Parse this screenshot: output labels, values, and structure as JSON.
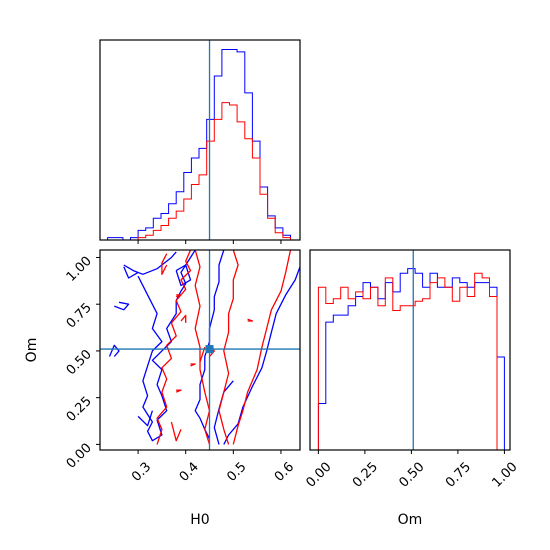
{
  "chart_data": {
    "type": "corner",
    "parameters": [
      "H0",
      "Om"
    ],
    "truths": {
      "H0": 0.45,
      "Om": 0.51
    },
    "colors": {
      "blue": "#0000ff",
      "red": "#ff0000",
      "truth": "#1f77b4"
    },
    "h0_hist": {
      "xlim": [
        0.22,
        0.64
      ],
      "bin_edges": [
        0.22,
        0.236,
        0.252,
        0.268,
        0.284,
        0.3,
        0.316,
        0.332,
        0.348,
        0.364,
        0.38,
        0.396,
        0.412,
        0.428,
        0.444,
        0.46,
        0.476,
        0.492,
        0.508,
        0.524,
        0.54,
        0.556,
        0.572,
        0.588,
        0.604,
        0.62
      ],
      "series": [
        {
          "color": "blue",
          "values": [
            0,
            1,
            1,
            0,
            1,
            4,
            5,
            9,
            11,
            15,
            20,
            28,
            34,
            38,
            50,
            68,
            79,
            79,
            78,
            61,
            41,
            22,
            10,
            5,
            2
          ]
        },
        {
          "color": "red",
          "values": [
            0,
            0,
            0,
            0,
            0,
            1,
            2,
            4,
            6,
            9,
            12,
            17,
            23,
            27,
            41,
            50,
            57,
            56,
            49,
            42,
            34,
            19,
            9,
            3,
            1
          ]
        }
      ]
    },
    "om_hist": {
      "xlim": [
        -0.045,
        1.03
      ],
      "xticks": [
        "0.00",
        "0.25",
        "0.50",
        "0.75",
        "1.00"
      ],
      "bin_edges": [
        0.0,
        0.04,
        0.08,
        0.12,
        0.16,
        0.2,
        0.24,
        0.28,
        0.32,
        0.36,
        0.4,
        0.44,
        0.48,
        0.52,
        0.56,
        0.6,
        0.64,
        0.68,
        0.72,
        0.76,
        0.8,
        0.84,
        0.88,
        0.92,
        0.96,
        1.0
      ],
      "series": [
        {
          "color": "blue",
          "values": [
            20,
            55,
            58,
            58,
            62,
            66,
            72,
            70,
            65,
            72,
            68,
            76,
            78,
            76,
            70,
            76,
            70,
            70,
            74,
            72,
            70,
            72,
            72,
            70,
            40
          ]
        },
        {
          "color": "red",
          "values": [
            70,
            63,
            65,
            70,
            65,
            68,
            65,
            70,
            62,
            74,
            60,
            62,
            62,
            64,
            65,
            72,
            74,
            70,
            64,
            70,
            66,
            76,
            74,
            66,
            0
          ]
        }
      ]
    },
    "contours": {
      "xlim": [
        0.22,
        0.64
      ],
      "ylim": [
        -0.03,
        1.04
      ],
      "xticks": [
        "0.3",
        "0.4",
        "0.5",
        "0.6"
      ],
      "yticks": [
        "0.00",
        "0.25",
        "0.50",
        "0.75",
        "1.00"
      ],
      "series": [
        {
          "color": "blue",
          "paths": [
            [
              [
                0.24,
                0.47
              ],
              [
                0.25,
                0.53
              ],
              [
                0.26,
                0.5
              ],
              [
                0.25,
                0.47
              ]
            ],
            [
              [
                0.26,
                0.76
              ],
              [
                0.28,
                0.75
              ],
              [
                0.27,
                0.72
              ],
              [
                0.25,
                0.74
              ]
            ],
            [
              [
                0.27,
                0.96
              ],
              [
                0.29,
                0.93
              ],
              [
                0.31,
                0.91
              ],
              [
                0.34,
                0.94
              ],
              [
                0.37,
                1.0
              ],
              [
                0.38,
                1.03
              ]
            ],
            [
              [
                0.38,
                0.93
              ],
              [
                0.4,
                0.96
              ],
              [
                0.41,
                0.88
              ],
              [
                0.39,
                0.85
              ],
              [
                0.38,
                0.93
              ]
            ],
            [
              [
                0.3,
                0.92
              ],
              [
                0.28,
                0.89
              ],
              [
                0.27,
                0.95
              ]
            ],
            [
              [
                0.3,
                0.9
              ],
              [
                0.32,
                0.8
              ],
              [
                0.34,
                0.7
              ],
              [
                0.33,
                0.62
              ],
              [
                0.35,
                0.55
              ],
              [
                0.33,
                0.5
              ],
              [
                0.32,
                0.42
              ],
              [
                0.31,
                0.34
              ],
              [
                0.32,
                0.26
              ],
              [
                0.31,
                0.2
              ],
              [
                0.33,
                0.12
              ],
              [
                0.32,
                0.07
              ],
              [
                0.33,
                0.02
              ],
              [
                0.35,
                0.05
              ],
              [
                0.34,
                0.13
              ],
              [
                0.36,
                0.18
              ],
              [
                0.35,
                0.26
              ],
              [
                0.34,
                0.32
              ],
              [
                0.35,
                0.4
              ],
              [
                0.33,
                0.45
              ],
              [
                0.35,
                0.5
              ],
              [
                0.37,
                0.55
              ],
              [
                0.36,
                0.62
              ],
              [
                0.38,
                0.7
              ],
              [
                0.38,
                0.77
              ],
              [
                0.39,
                0.82
              ],
              [
                0.4,
                0.86
              ],
              [
                0.39,
                0.92
              ],
              [
                0.41,
                1.0
              ],
              [
                0.42,
                1.04
              ]
            ],
            [
              [
                0.3,
                0.15
              ],
              [
                0.32,
                0.1
              ],
              [
                0.33,
                0.18
              ]
            ],
            [
              [
                0.48,
                1.04
              ],
              [
                0.47,
                0.96
              ],
              [
                0.47,
                0.87
              ],
              [
                0.46,
                0.79
              ],
              [
                0.46,
                0.72
              ],
              [
                0.45,
                0.62
              ],
              [
                0.45,
                0.55
              ],
              [
                0.44,
                0.47
              ],
              [
                0.44,
                0.4
              ],
              [
                0.43,
                0.32
              ],
              [
                0.43,
                0.24
              ],
              [
                0.42,
                0.18
              ],
              [
                0.43,
                0.14
              ],
              [
                0.44,
                0.08
              ],
              [
                0.45,
                0.03
              ]
            ],
            [
              [
                0.48,
                0.0
              ],
              [
                0.49,
                0.05
              ],
              [
                0.51,
                0.11
              ],
              [
                0.52,
                0.2
              ],
              [
                0.54,
                0.31
              ],
              [
                0.56,
                0.41
              ],
              [
                0.57,
                0.5
              ],
              [
                0.58,
                0.6
              ],
              [
                0.59,
                0.7
              ],
              [
                0.61,
                0.8
              ],
              [
                0.63,
                0.88
              ],
              [
                0.64,
                0.95
              ]
            ],
            [
              [
                0.47,
                0.0
              ],
              [
                0.46,
                0.09
              ],
              [
                0.47,
                0.19
              ],
              [
                0.48,
                0.28
              ],
              [
                0.5,
                0.34
              ]
            ]
          ]
        },
        {
          "color": "red",
          "paths": [
            [
              [
                0.34,
                0.0
              ],
              [
                0.35,
                0.08
              ],
              [
                0.34,
                0.14
              ],
              [
                0.36,
                0.2
              ],
              [
                0.35,
                0.28
              ],
              [
                0.36,
                0.35
              ],
              [
                0.35,
                0.41
              ],
              [
                0.37,
                0.46
              ],
              [
                0.36,
                0.53
              ],
              [
                0.38,
                0.58
              ],
              [
                0.37,
                0.65
              ],
              [
                0.39,
                0.71
              ],
              [
                0.38,
                0.77
              ],
              [
                0.4,
                0.83
              ],
              [
                0.39,
                0.88
              ],
              [
                0.41,
                0.93
              ],
              [
                0.4,
                0.98
              ],
              [
                0.41,
                1.04
              ]
            ],
            [
              [
                0.36,
                0.96
              ],
              [
                0.35,
                0.91
              ],
              [
                0.35,
                0.97
              ],
              [
                0.36,
                1.02
              ]
            ],
            [
              [
                0.38,
                0.79
              ],
              [
                0.39,
                0.8
              ],
              [
                0.38,
                0.8
              ]
            ],
            [
              [
                0.38,
                0.28
              ],
              [
                0.39,
                0.29
              ],
              [
                0.38,
                0.29
              ]
            ],
            [
              [
                0.39,
                0.66
              ],
              [
                0.4,
                0.69
              ],
              [
                0.4,
                0.65
              ]
            ],
            [
              [
                0.41,
                0.42
              ],
              [
                0.42,
                0.43
              ],
              [
                0.41,
                0.43
              ]
            ],
            [
              [
                0.37,
                0.12
              ],
              [
                0.38,
                0.02
              ],
              [
                0.39,
                0.08
              ]
            ],
            [
              [
                0.45,
                0.0
              ],
              [
                0.44,
                0.08
              ],
              [
                0.45,
                0.18
              ],
              [
                0.44,
                0.28
              ],
              [
                0.43,
                0.4
              ],
              [
                0.43,
                0.52
              ],
              [
                0.42,
                0.62
              ],
              [
                0.43,
                0.74
              ],
              [
                0.42,
                0.85
              ],
              [
                0.43,
                0.95
              ],
              [
                0.42,
                1.04
              ]
            ],
            [
              [
                0.49,
                0.0
              ],
              [
                0.48,
                0.08
              ],
              [
                0.47,
                0.18
              ],
              [
                0.48,
                0.28
              ],
              [
                0.49,
                0.38
              ],
              [
                0.48,
                0.5
              ],
              [
                0.49,
                0.6
              ],
              [
                0.49,
                0.7
              ],
              [
                0.5,
                0.78
              ],
              [
                0.5,
                0.88
              ],
              [
                0.51,
                0.96
              ],
              [
                0.5,
                1.04
              ]
            ],
            [
              [
                0.5,
                0.0
              ],
              [
                0.51,
                0.1
              ],
              [
                0.52,
                0.18
              ],
              [
                0.53,
                0.28
              ],
              [
                0.55,
                0.4
              ],
              [
                0.56,
                0.52
              ],
              [
                0.57,
                0.62
              ],
              [
                0.58,
                0.72
              ],
              [
                0.6,
                0.82
              ],
              [
                0.61,
                0.92
              ],
              [
                0.62,
                1.04
              ]
            ],
            [
              [
                0.45,
                0.47
              ],
              [
                0.46,
                0.5
              ],
              [
                0.45,
                0.53
              ]
            ],
            [
              [
                0.53,
                0.67
              ],
              [
                0.54,
                0.66
              ],
              [
                0.53,
                0.66
              ]
            ],
            [
              [
                0.43,
                0.44
              ],
              [
                0.44,
                0.52
              ]
            ]
          ]
        }
      ]
    },
    "xlabel_h0": "H0",
    "xlabel_om": "Om",
    "ylabel_om": "Om"
  }
}
